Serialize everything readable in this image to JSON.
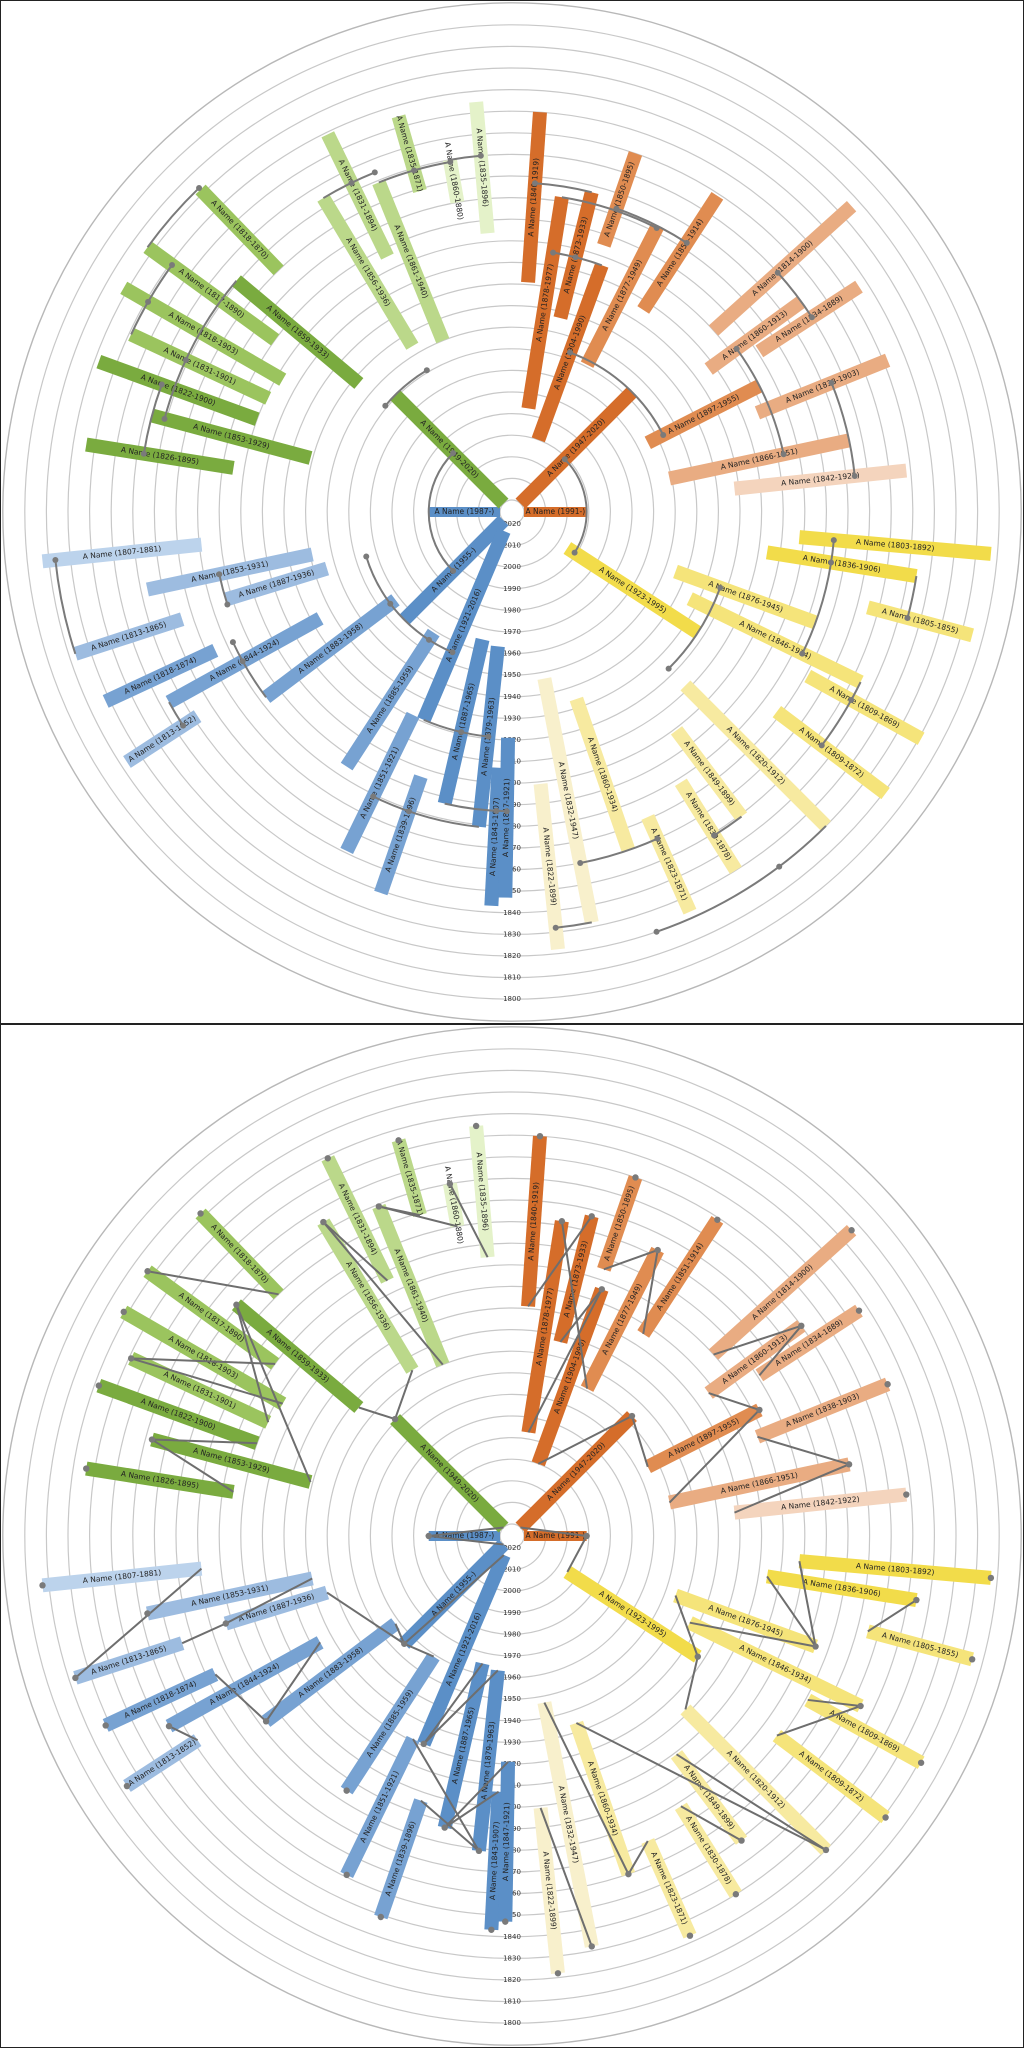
{
  "years": [
    "2020",
    "2010",
    "2000",
    "1990",
    "1980",
    "1970",
    "1960",
    "1950",
    "1940",
    "1930",
    "1920",
    "1910",
    "1900",
    "1890",
    "1880",
    "1870",
    "1860",
    "1850",
    "1840",
    "1830",
    "1820",
    "1810",
    "1800"
  ],
  "colors": {
    "blue_1": "#5b8fc7",
    "blue_2": "#77a2d2",
    "blue_3": "#9dbce0",
    "blue_4": "#bcd3ec",
    "green_1": "#7aab3f",
    "green_2": "#9bc45e",
    "green_3": "#bbd88a",
    "green_4": "#e4f2c9",
    "orange_1": "#d56d2a",
    "orange_2": "#e08c51",
    "orange_3": "#e9ac82",
    "orange_4": "#f4d4bd",
    "yellow_1": "#f2dc4a",
    "yellow_2": "#f5e47a",
    "yellow_3": "#f7eaa0",
    "yellow_4": "#f8f0cc",
    "arc": "#7a7a7a",
    "ring": "#c8c8c8"
  },
  "people": [
    {
      "id": "root_left",
      "label": "A Name (1987-)",
      "color": "blue_1",
      "born": 1987,
      "died": 2020,
      "angle": 180
    },
    {
      "id": "root_right",
      "label": "A Name (1991-)",
      "color": "orange_1",
      "born": 1991,
      "died": 2020,
      "angle": 0
    },
    {
      "id": "b1",
      "label": "A Name (1955-)",
      "color": "blue_1",
      "born": 1955,
      "died": 2020,
      "angle": 225
    },
    {
      "id": "b2",
      "label": "A Name (1921-2016)",
      "color": "blue_1",
      "born": 1921,
      "died": 2016,
      "angle": 247
    },
    {
      "id": "b3",
      "label": "A Name (1887-1965)",
      "color": "blue_1",
      "born": 1887,
      "died": 1965,
      "angle": 257
    },
    {
      "id": "b4",
      "label": "A Name (1879-1963)",
      "color": "blue_1",
      "born": 1879,
      "died": 1963,
      "angle": 264
    },
    {
      "id": "b5",
      "label": "A Name (1843-1907)",
      "color": "blue_1",
      "born": 1843,
      "died": 1907,
      "angle": 267
    },
    {
      "id": "b6",
      "label": "A Name (1847-1921)",
      "color": "blue_1",
      "born": 1847,
      "died": 1921,
      "angle": 269
    },
    {
      "id": "b7",
      "label": "A Name (1885-1959)",
      "color": "blue_2",
      "born": 1885,
      "died": 1959,
      "angle": 237
    },
    {
      "id": "b8",
      "label": "A Name (1851-1921)",
      "color": "blue_2",
      "born": 1851,
      "died": 1921,
      "angle": 244
    },
    {
      "id": "b9",
      "label": "A Name (1839-1896)",
      "color": "blue_2",
      "born": 1839,
      "died": 1896,
      "angle": 251
    },
    {
      "id": "b10",
      "label": "A Name (1883-1958)",
      "color": "blue_2",
      "born": 1883,
      "died": 1958,
      "angle": 217
    },
    {
      "id": "b11",
      "label": "A Name (1844-1924)",
      "color": "blue_2",
      "born": 1844,
      "died": 1924,
      "angle": 209
    },
    {
      "id": "b12",
      "label": "A Name (1818-1874)",
      "color": "blue_2",
      "born": 1818,
      "died": 1874,
      "angle": 205
    },
    {
      "id": "b13",
      "label": "A Name (1813-1852)",
      "color": "blue_3",
      "born": 1813,
      "died": 1852,
      "angle": 213
    },
    {
      "id": "b14",
      "label": "A Name (1887-1936)",
      "color": "blue_3",
      "born": 1887,
      "died": 1936,
      "angle": 197
    },
    {
      "id": "b15",
      "label": "A Name (1853-1931)",
      "color": "blue_3",
      "born": 1853,
      "died": 1931,
      "angle": 192
    },
    {
      "id": "b16",
      "label": "A Name (1813-1865)",
      "color": "blue_3",
      "born": 1813,
      "died": 1865,
      "angle": 198
    },
    {
      "id": "b17",
      "label": "A Name (1807-1881)",
      "color": "blue_4",
      "born": 1807,
      "died": 1881,
      "angle": 186
    },
    {
      "id": "g1",
      "label": "A Name (1949-2020)",
      "color": "green_1",
      "born": 1949,
      "died": 2020,
      "angle": 135
    },
    {
      "id": "g2",
      "label": "A Name (1859-1933)",
      "color": "green_1",
      "born": 1859,
      "died": 1933,
      "angle": 140
    },
    {
      "id": "g3",
      "label": "A Name (1853-1929)",
      "color": "green_1",
      "born": 1853,
      "died": 1929,
      "angle": 165
    },
    {
      "id": "g4",
      "label": "A Name (1822-1900)",
      "color": "green_1",
      "born": 1822,
      "died": 1900,
      "angle": 160
    },
    {
      "id": "g5",
      "label": "A Name (1826-1895)",
      "color": "green_1",
      "born": 1826,
      "died": 1895,
      "angle": 171
    },
    {
      "id": "g6",
      "label": "A Name (1831-1901)",
      "color": "green_2",
      "born": 1831,
      "died": 1901,
      "angle": 155
    },
    {
      "id": "g7",
      "label": "A Name (1818-1903)",
      "color": "green_2",
      "born": 1818,
      "died": 1903,
      "angle": 150
    },
    {
      "id": "g8",
      "label": "A Name (1817-1890)",
      "color": "green_2",
      "born": 1817,
      "died": 1890,
      "angle": 144
    },
    {
      "id": "g9",
      "label": "A Name (1818-1870)",
      "color": "green_2",
      "born": 1818,
      "died": 1870,
      "angle": 134
    },
    {
      "id": "g10",
      "label": "A Name (1856-1936)",
      "color": "green_3",
      "born": 1856,
      "died": 1936,
      "angle": 121
    },
    {
      "id": "g11",
      "label": "A Name (1831-1894)",
      "color": "green_3",
      "born": 1831,
      "died": 1894,
      "angle": 116
    },
    {
      "id": "g12",
      "label": "A Name (1861-1940)",
      "color": "green_3",
      "born": 1861,
      "died": 1940,
      "angle": 112
    },
    {
      "id": "g13",
      "label": "A Name (1835-1871)",
      "color": "green_3",
      "born": 1835,
      "died": 1871,
      "angle": 106
    },
    {
      "id": "g14",
      "label": "A Name (1860-1880)",
      "color": "green_4",
      "born": 1860,
      "died": 1880,
      "angle": 100
    },
    {
      "id": "g15",
      "label": "A Name (1835-1896)",
      "color": "green_4",
      "born": 1835,
      "died": 1896,
      "angle": 95
    },
    {
      "id": "o1",
      "label": "A Name (1947-2020)",
      "color": "orange_1",
      "born": 1947,
      "died": 2020,
      "angle": 45
    },
    {
      "id": "o2",
      "label": "A Name (1904-1990)",
      "color": "orange_1",
      "born": 1904,
      "died": 1990,
      "angle": 70
    },
    {
      "id": "o3",
      "label": "A Name (1873-1933)",
      "color": "orange_1",
      "born": 1873,
      "died": 1933,
      "angle": 76
    },
    {
      "id": "o4",
      "label": "A Name (1878-1977)",
      "color": "orange_1",
      "born": 1878,
      "died": 1977,
      "angle": 81
    },
    {
      "id": "o5",
      "label": "A Name (1840-1919)",
      "color": "orange_1",
      "born": 1840,
      "died": 1919,
      "angle": 86
    },
    {
      "id": "o6",
      "label": "A Name (1897-1955)",
      "color": "orange_2",
      "born": 1897,
      "died": 1955,
      "angle": 27
    },
    {
      "id": "o7",
      "label": "A Name (1877-1949)",
      "color": "orange_2",
      "born": 1877,
      "died": 1949,
      "angle": 63
    },
    {
      "id": "o8",
      "label": "A Name (1851-1914)",
      "color": "orange_2",
      "born": 1851,
      "died": 1914,
      "angle": 57
    },
    {
      "id": "o9",
      "label": "A Name (1850-1895)",
      "color": "orange_2",
      "born": 1850,
      "died": 1895,
      "angle": 71
    },
    {
      "id": "o10",
      "label": "A Name (1860-1913)",
      "color": "orange_3",
      "born": 1860,
      "died": 1913,
      "angle": 36
    },
    {
      "id": "o11",
      "label": "A Name (1814-1900)",
      "color": "orange_3",
      "born": 1814,
      "died": 1900,
      "angle": 42
    },
    {
      "id": "o12",
      "label": "A Name (1834-1889)",
      "color": "orange_3",
      "born": 1834,
      "died": 1889,
      "angle": 33
    },
    {
      "id": "o13",
      "label": "A Name (1838-1903)",
      "color": "orange_3",
      "born": 1838,
      "died": 1903,
      "angle": 22
    },
    {
      "id": "o14",
      "label": "A Name (1866-1951)",
      "color": "orange_3",
      "born": 1866,
      "died": 1951,
      "angle": 12
    },
    {
      "id": "o15",
      "label": "A Name (1842-1922)",
      "color": "orange_4",
      "born": 1842,
      "died": 1922,
      "angle": 6
    },
    {
      "id": "y1",
      "label": "A Name (1923-1995)",
      "color": "yellow_1",
      "born": 1923,
      "died": 1995,
      "angle": -33
    },
    {
      "id": "y2",
      "label": "A Name (1803-1892)",
      "color": "yellow_1",
      "born": 1803,
      "died": 1892,
      "angle": -5
    },
    {
      "id": "y3",
      "label": "A Name (1836-1906)",
      "color": "yellow_1",
      "born": 1836,
      "died": 1906,
      "angle": -9
    },
    {
      "id": "y4",
      "label": "A Name (1876-1945)",
      "color": "yellow_2",
      "born": 1876,
      "died": 1945,
      "angle": -20
    },
    {
      "id": "y5",
      "label": "A Name (1805-1855)",
      "color": "yellow_2",
      "born": 1805,
      "died": 1855,
      "angle": -15
    },
    {
      "id": "y6",
      "label": "A Name (1846-1934)",
      "color": "yellow_2",
      "born": 1846,
      "died": 1934,
      "angle": -26
    },
    {
      "id": "y7",
      "label": "A Name (1809-1869)",
      "color": "yellow_2",
      "born": 1809,
      "died": 1869,
      "angle": -29
    },
    {
      "id": "y8",
      "label": "A Name (1809-1872)",
      "color": "yellow_2",
      "born": 1809,
      "died": 1872,
      "angle": -37
    },
    {
      "id": "y9",
      "label": "A Name (1820-1912)",
      "color": "yellow_3",
      "born": 1820,
      "died": 1912,
      "angle": -45
    },
    {
      "id": "y10",
      "label": "A Name (1849-1899)",
      "color": "yellow_3",
      "born": 1849,
      "died": 1899,
      "angle": -53
    },
    {
      "id": "y11",
      "label": "A Name (1830-1878)",
      "color": "yellow_3",
      "born": 1830,
      "died": 1878,
      "angle": -58
    },
    {
      "id": "y12",
      "label": "A Name (1860-1934)",
      "color": "yellow_3",
      "born": 1860,
      "died": 1934,
      "angle": -71
    },
    {
      "id": "y13",
      "label": "A Name (1823-1871)",
      "color": "yellow_3",
      "born": 1823,
      "died": 1871,
      "angle": -66
    },
    {
      "id": "y14",
      "label": "A Name (1832-1947)",
      "color": "yellow_4",
      "born": 1832,
      "died": 1947,
      "angle": -79
    },
    {
      "id": "y15",
      "label": "A Name (1822-1899)",
      "color": "yellow_4",
      "born": 1822,
      "died": 1899,
      "angle": -84
    }
  ],
  "links": [
    [
      "root_left",
      "b1"
    ],
    [
      "root_left",
      "g1"
    ],
    [
      "root_right",
      "o1"
    ],
    [
      "root_right",
      "y1"
    ],
    [
      "b1",
      "b2"
    ],
    [
      "b1",
      "b7"
    ],
    [
      "b1",
      "b10"
    ],
    [
      "b1",
      "b14"
    ],
    [
      "b2",
      "b3"
    ],
    [
      "b2",
      "b4"
    ],
    [
      "b3",
      "b5"
    ],
    [
      "b3",
      "b6"
    ],
    [
      "b4",
      "b8"
    ],
    [
      "b4",
      "b9"
    ],
    [
      "b10",
      "b11"
    ],
    [
      "b10",
      "b12"
    ],
    [
      "b11",
      "b13"
    ],
    [
      "b14",
      "b15"
    ],
    [
      "b14",
      "b16"
    ],
    [
      "b16",
      "b17"
    ],
    [
      "g1",
      "g2"
    ],
    [
      "g1",
      "g10"
    ],
    [
      "g2",
      "g3"
    ],
    [
      "g2",
      "g6"
    ],
    [
      "g3",
      "g4"
    ],
    [
      "g3",
      "g5"
    ],
    [
      "g6",
      "g7"
    ],
    [
      "g6",
      "g8"
    ],
    [
      "g8",
      "g9"
    ],
    [
      "g10",
      "g11"
    ],
    [
      "g10",
      "g12"
    ],
    [
      "g12",
      "g13"
    ],
    [
      "g12",
      "g14"
    ],
    [
      "g14",
      "g15"
    ],
    [
      "o1",
      "o2"
    ],
    [
      "o1",
      "o6"
    ],
    [
      "o2",
      "o3"
    ],
    [
      "o2",
      "o4"
    ],
    [
      "o3",
      "o5"
    ],
    [
      "o4",
      "o7"
    ],
    [
      "o7",
      "o8"
    ],
    [
      "o7",
      "o9"
    ],
    [
      "o6",
      "o10"
    ],
    [
      "o6",
      "o14"
    ],
    [
      "o10",
      "o11"
    ],
    [
      "o10",
      "o12"
    ],
    [
      "o14",
      "o13"
    ],
    [
      "o14",
      "o15"
    ],
    [
      "y1",
      "y4"
    ],
    [
      "y1",
      "y9"
    ],
    [
      "y4",
      "y2"
    ],
    [
      "y4",
      "y3"
    ],
    [
      "y3",
      "y5"
    ],
    [
      "y4",
      "y6"
    ],
    [
      "y6",
      "y7"
    ],
    [
      "y6",
      "y8"
    ],
    [
      "y9",
      "y10"
    ],
    [
      "y9",
      "y12"
    ],
    [
      "y10",
      "y11"
    ],
    [
      "y12",
      "y13"
    ],
    [
      "y12",
      "y14"
    ],
    [
      "y14",
      "y15"
    ]
  ]
}
